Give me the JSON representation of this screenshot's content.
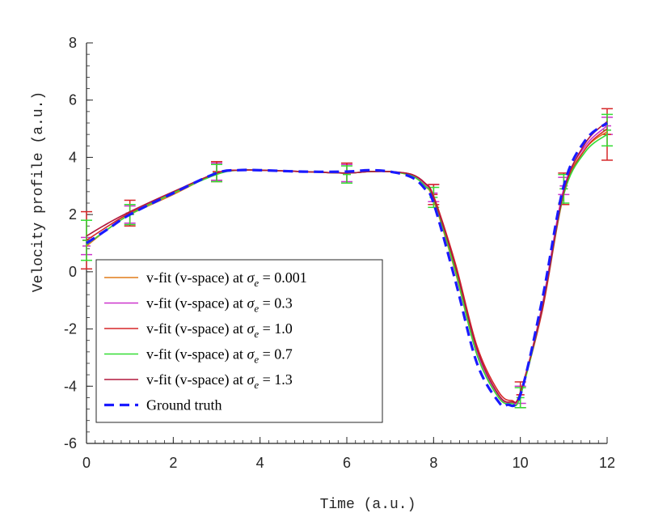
{
  "chart_data": {
    "type": "line",
    "title": "",
    "xlabel": "Time (a.u.)",
    "ylabel": "Velocity profile (a.u.)",
    "xlim": [
      0,
      12
    ],
    "ylim": [
      -6,
      8
    ],
    "xticks": [
      0,
      2,
      4,
      6,
      8,
      10,
      12
    ],
    "yticks": [
      -6,
      -4,
      -2,
      0,
      2,
      4,
      6,
      8
    ],
    "xtick_labels": [
      "0",
      "2",
      "4",
      "6",
      "8",
      "10",
      "12"
    ],
    "ytick_labels": [
      "-6",
      "-4",
      "-2",
      "0",
      "2",
      "4",
      "6",
      "8"
    ],
    "grid": false,
    "legend_position": "bottom-left",
    "series": [
      {
        "name": "v-fit (v-space) at σe = 0.001",
        "legend_prefix": "v-fit (v-space) at ",
        "legend_sigma": "σ",
        "legend_sub": "e",
        "legend_value": " = 0.001",
        "color": "#e07b1a",
        "style": "solid",
        "x": [
          0,
          0.5,
          1,
          2,
          3,
          3.5,
          4,
          5,
          6,
          6.5,
          7,
          7.5,
          7.8,
          8,
          8.5,
          9,
          9.5,
          9.8,
          10,
          10.5,
          11,
          11.5,
          12
        ],
        "y": [
          0.9,
          1.5,
          2.0,
          2.7,
          3.45,
          3.55,
          3.55,
          3.5,
          3.45,
          3.5,
          3.5,
          3.35,
          3.0,
          2.5,
          0.0,
          -2.9,
          -4.4,
          -4.6,
          -4.3,
          -1.2,
          2.8,
          4.3,
          4.9
        ],
        "error_bars": []
      },
      {
        "name": "v-fit (v-space) at σe = 0.3",
        "legend_prefix": "v-fit (v-space) at ",
        "legend_sigma": "σ",
        "legend_sub": "e",
        "legend_value": " = 0.3",
        "color": "#cc33cc",
        "style": "solid",
        "x": [
          0,
          0.5,
          1,
          2,
          3,
          3.5,
          4,
          5,
          6,
          6.5,
          7,
          7.5,
          7.8,
          8,
          8.5,
          9,
          9.5,
          9.8,
          10,
          10.5,
          11,
          11.5,
          12
        ],
        "y": [
          0.95,
          1.5,
          2.0,
          2.75,
          3.45,
          3.55,
          3.55,
          3.5,
          3.45,
          3.5,
          3.5,
          3.38,
          3.05,
          2.6,
          0.1,
          -2.8,
          -4.35,
          -4.55,
          -4.3,
          -1.2,
          2.9,
          4.4,
          5.1
        ],
        "error_bars": [
          {
            "x": 0,
            "y": 0.9,
            "err": 0.3
          },
          {
            "x": 1,
            "y": 2.0,
            "err": 0.3
          },
          {
            "x": 3,
            "y": 3.5,
            "err": 0.3
          },
          {
            "x": 6,
            "y": 3.45,
            "err": 0.3
          },
          {
            "x": 8,
            "y": 2.75,
            "err": 0.3
          },
          {
            "x": 10,
            "y": -4.3,
            "err": 0.3
          },
          {
            "x": 11,
            "y": 3.0,
            "err": 0.3
          },
          {
            "x": 12,
            "y": 5.1,
            "err": 0.3
          }
        ]
      },
      {
        "name": "v-fit (v-space) at σe = 1.0",
        "legend_prefix": "v-fit (v-space) at ",
        "legend_sigma": "σ",
        "legend_sub": "e",
        "legend_value": " = 1.0",
        "color": "#d62728",
        "style": "solid",
        "x": [
          0,
          0.5,
          1,
          2,
          3,
          3.5,
          4,
          5,
          6,
          6.5,
          7,
          7.5,
          7.8,
          8,
          8.5,
          9,
          9.5,
          9.8,
          10,
          10.5,
          11,
          11.5,
          12
        ],
        "y": [
          1.1,
          1.6,
          2.05,
          2.75,
          3.45,
          3.55,
          3.55,
          3.5,
          3.45,
          3.5,
          3.5,
          3.4,
          3.1,
          2.65,
          0.3,
          -2.6,
          -4.2,
          -4.5,
          -4.25,
          -1.4,
          2.7,
          4.3,
          5.0
        ],
        "error_bars": [
          {
            "x": 0,
            "y": 1.1,
            "err": 1.0
          },
          {
            "x": 1,
            "y": 2.05,
            "err": 0.45
          },
          {
            "x": 3,
            "y": 3.5,
            "err": 0.35
          },
          {
            "x": 6,
            "y": 3.45,
            "err": 0.35
          },
          {
            "x": 8,
            "y": 2.7,
            "err": 0.35
          },
          {
            "x": 10,
            "y": -4.3,
            "err": 0.45
          },
          {
            "x": 11,
            "y": 2.9,
            "err": 0.55
          },
          {
            "x": 12,
            "y": 4.8,
            "err": 0.9
          }
        ]
      },
      {
        "name": "v-fit (v-space) at σe = 0.7",
        "legend_prefix": "v-fit (v-space) at ",
        "legend_sigma": "σ",
        "legend_sub": "e",
        "legend_value": " = 0.7",
        "color": "#33dd33",
        "style": "solid",
        "x": [
          0,
          0.5,
          1,
          2,
          3,
          3.5,
          4,
          5,
          6,
          6.5,
          7,
          7.5,
          7.8,
          8,
          8.5,
          9,
          9.5,
          9.8,
          10,
          10.5,
          11,
          11.5,
          12
        ],
        "y": [
          0.95,
          1.5,
          2.0,
          2.75,
          3.4,
          3.55,
          3.55,
          3.5,
          3.45,
          3.5,
          3.5,
          3.35,
          3.0,
          2.55,
          0.05,
          -2.9,
          -4.4,
          -4.6,
          -4.35,
          -1.3,
          2.7,
          4.2,
          4.8
        ],
        "error_bars": [
          {
            "x": 0,
            "y": 1.1,
            "err": 0.7
          },
          {
            "x": 1,
            "y": 2.0,
            "err": 0.35
          },
          {
            "x": 3,
            "y": 3.45,
            "err": 0.3
          },
          {
            "x": 6,
            "y": 3.4,
            "err": 0.3
          },
          {
            "x": 8,
            "y": 2.6,
            "err": 0.35
          },
          {
            "x": 10,
            "y": -4.4,
            "err": 0.35
          },
          {
            "x": 11,
            "y": 2.9,
            "err": 0.5
          },
          {
            "x": 12,
            "y": 4.95,
            "err": 0.55
          }
        ]
      },
      {
        "name": "v-fit (v-space) at σe = 1.3",
        "legend_prefix": "v-fit (v-space) at ",
        "legend_sigma": "σ",
        "legend_sub": "e",
        "legend_value": " = 1.3",
        "color": "#b2183d",
        "style": "solid",
        "x": [
          0,
          0.5,
          1,
          2,
          3,
          3.5,
          4,
          5,
          6,
          6.5,
          7,
          7.5,
          7.8,
          8,
          8.5,
          9,
          9.5,
          9.8,
          10,
          10.5,
          11,
          11.5,
          12
        ],
        "y": [
          1.25,
          1.7,
          2.1,
          2.8,
          3.45,
          3.55,
          3.55,
          3.5,
          3.45,
          3.5,
          3.5,
          3.4,
          3.1,
          2.6,
          0.2,
          -2.7,
          -4.3,
          -4.55,
          -4.2,
          -1.3,
          2.8,
          4.5,
          5.25
        ],
        "error_bars": []
      },
      {
        "name": "Ground truth",
        "legend_prefix": "Ground truth",
        "legend_sigma": "",
        "legend_sub": "",
        "legend_value": "",
        "color": "#1a1aff",
        "style": "dashed",
        "x": [
          0,
          0.5,
          1,
          2,
          3,
          3.5,
          4,
          5,
          6,
          6.5,
          7,
          7.5,
          7.8,
          8,
          8.5,
          9,
          9.5,
          9.7,
          10,
          10.5,
          11,
          11.5,
          12
        ],
        "y": [
          1.0,
          1.5,
          2.0,
          2.75,
          3.45,
          3.55,
          3.55,
          3.5,
          3.5,
          3.55,
          3.5,
          3.3,
          2.9,
          2.4,
          -0.3,
          -3.2,
          -4.55,
          -4.65,
          -4.3,
          -1.0,
          3.0,
          4.6,
          5.2
        ],
        "error_bars": []
      }
    ]
  }
}
